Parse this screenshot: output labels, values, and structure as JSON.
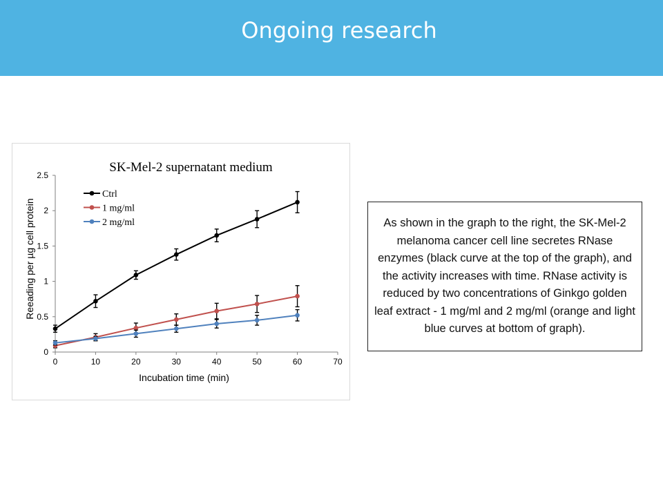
{
  "header": {
    "title": "Ongoing research",
    "colors": {
      "background": "#4fb3e2",
      "text": "#ffffff"
    }
  },
  "note": {
    "text": "As shown in the graph to the right, the SK-Mel-2 melanoma cancer cell line secretes RNase enzymes (black curve at the top of the graph), and the activity increases with time. RNase activity is reduced by two concentrations of Ginkgo golden leaf extract - 1 mg/ml and 2 mg/ml (orange and light blue curves at bottom of graph)."
  },
  "chart_data": {
    "type": "line",
    "title": "SK-Mel-2 supernatant medium",
    "xlabel": "Incubation time (min)",
    "ylabel": "Reeading per µg cell protein",
    "xlim": [
      0,
      70
    ],
    "ylim": [
      0,
      2.5
    ],
    "x_ticks": [
      "0",
      "10",
      "20",
      "30",
      "40",
      "50",
      "60",
      "70"
    ],
    "y_ticks": [
      "0",
      "0.5",
      "1",
      "1.5",
      "2",
      "2.5"
    ],
    "grid": false,
    "legend_position": "top-left",
    "x": [
      0,
      10,
      20,
      30,
      40,
      50,
      60
    ],
    "series": [
      {
        "name": "Ctrl",
        "color": "#000000",
        "values": [
          0.33,
          0.72,
          1.09,
          1.38,
          1.65,
          1.88,
          2.12
        ],
        "errors": [
          0.05,
          0.09,
          0.06,
          0.08,
          0.09,
          0.12,
          0.15
        ]
      },
      {
        "name": "1 mg/ml",
        "color": "#c0504d",
        "values": [
          0.09,
          0.21,
          0.34,
          0.46,
          0.58,
          0.68,
          0.79
        ],
        "errors": [
          0.03,
          0.05,
          0.07,
          0.08,
          0.11,
          0.12,
          0.15
        ]
      },
      {
        "name": "2 mg/ml",
        "color": "#4f81bd",
        "values": [
          0.13,
          0.19,
          0.26,
          0.33,
          0.4,
          0.45,
          0.52
        ],
        "errors": [
          0.03,
          0.03,
          0.05,
          0.05,
          0.06,
          0.07,
          0.08
        ]
      }
    ]
  }
}
